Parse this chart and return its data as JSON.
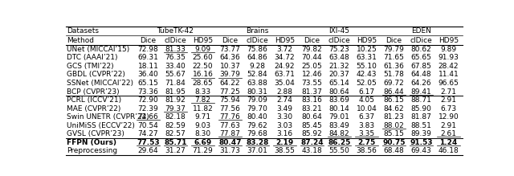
{
  "dataset_labels": [
    "TubeTK-42",
    "Brains",
    "IXI-45",
    "EDEN"
  ],
  "col_labels": [
    "Dice",
    "clDice",
    "HD95",
    "Dice",
    "clDice",
    "HD95",
    "Dice",
    "clDice",
    "HD95",
    "Dice",
    "clDice",
    "HD95"
  ],
  "rows": [
    {
      "method": "UNet (MICCAI’15)",
      "vals": [
        "72.98",
        "81.33",
        "9.09",
        "73.77",
        "75.86",
        "3.72",
        "79.82",
        "75.23",
        "10.25",
        "79.79",
        "80.62",
        "9.89"
      ]
    },
    {
      "method": "DTC (AAAI’21)",
      "vals": [
        "69.31",
        "76.35",
        "25.60",
        "64.36",
        "64.86",
        "34.72",
        "70.44",
        "63.48",
        "63.31",
        "71.65",
        "65.65",
        "91.93"
      ]
    },
    {
      "method": "GCS (TMI’22)",
      "vals": [
        "18.11",
        "33.40",
        "22.50",
        "10.37",
        "9.28",
        "24.92",
        "25.05",
        "21.32",
        "55.10",
        "61.36",
        "67.85",
        "28.42"
      ]
    },
    {
      "method": "GBDL (CVPR’22)",
      "vals": [
        "36.40",
        "55.67",
        "16.16",
        "39.79",
        "52.84",
        "63.71",
        "12.46",
        "20.37",
        "42.43",
        "51.78",
        "64.48",
        "11.41"
      ]
    },
    {
      "method": "SSNet (MICCAI’22)",
      "vals": [
        "65.15",
        "71.84",
        "28.65",
        "64.22",
        "63.88",
        "35.04",
        "73.55",
        "65.14",
        "52.05",
        "69.72",
        "64.26",
        "96.65"
      ]
    },
    {
      "method": "BCP (CVPR’23)",
      "vals": [
        "73.36",
        "81.95",
        "8.33",
        "77.25",
        "80.31",
        "2.88",
        "81.37",
        "80.64",
        "6.17",
        "86.44",
        "89.41",
        "2.71"
      ]
    },
    {
      "method": "PCRL (ICCV’21)",
      "vals": [
        "72.90",
        "81.92",
        "7.82",
        "75.94",
        "79.09",
        "2.74",
        "83.16",
        "83.69",
        "4.05",
        "86.15",
        "88.71",
        "2.91"
      ]
    },
    {
      "method": "MAE (CVPR’22)",
      "vals": [
        "72.39",
        "79.37",
        "11.82",
        "77.56",
        "79.70",
        "3.49",
        "83.21",
        "80.14",
        "10.04",
        "84.62",
        "85.90",
        "6.73"
      ]
    },
    {
      "method": "Swin UNETR (CVPR’22)",
      "vals": [
        "74.66",
        "82.18",
        "9.71",
        "77.76",
        "80.40",
        "3.30",
        "80.64",
        "79.01",
        "6.37",
        "81.23",
        "81.87",
        "12.90"
      ]
    },
    {
      "method": "UniMiSS (ECCV’22)",
      "vals": [
        "70.54",
        "82.59",
        "9.03",
        "77.63",
        "79.62",
        "3.03",
        "85.45",
        "83.49",
        "3.83",
        "88.02",
        "88.51",
        "2.91"
      ]
    },
    {
      "method": "GVSL (CVPR’23)",
      "vals": [
        "74.27",
        "82.57",
        "8.30",
        "77.87",
        "79.68",
        "3.16",
        "85.92",
        "84.82",
        "3.35",
        "85.15",
        "89.39",
        "2.61"
      ]
    },
    {
      "method": "FFPN (Ours)",
      "vals": [
        "77.53",
        "85.71",
        "6.69",
        "80.47",
        "83.28",
        "2.19",
        "87.24",
        "86.25",
        "2.75",
        "90.75",
        "91.53",
        "1.24"
      ]
    },
    {
      "method": "Preprocessing",
      "vals": [
        "29.64",
        "31.27",
        "71.29",
        "31.73",
        "37.01",
        "38.55",
        "43.18",
        "55.50",
        "38.56",
        "68.48",
        "69.43",
        "46.18"
      ]
    }
  ],
  "underline_cells": [
    [
      0,
      1
    ],
    [
      0,
      2
    ],
    [
      3,
      2
    ],
    [
      3,
      3
    ],
    [
      5,
      9
    ],
    [
      5,
      10
    ],
    [
      6,
      2
    ],
    [
      7,
      1
    ],
    [
      8,
      0
    ],
    [
      8,
      3
    ],
    [
      9,
      9
    ],
    [
      10,
      3
    ],
    [
      10,
      7
    ],
    [
      10,
      8
    ],
    [
      10,
      11
    ],
    [
      11,
      0
    ],
    [
      11,
      1
    ],
    [
      11,
      2
    ],
    [
      11,
      3
    ],
    [
      11,
      4
    ],
    [
      11,
      5
    ],
    [
      11,
      6
    ],
    [
      11,
      7
    ],
    [
      11,
      8
    ],
    [
      11,
      9
    ],
    [
      11,
      10
    ],
    [
      11,
      11
    ]
  ],
  "bold_rows": [
    11
  ],
  "separator_after_rows": [
    5,
    10
  ],
  "font_size": 6.5
}
